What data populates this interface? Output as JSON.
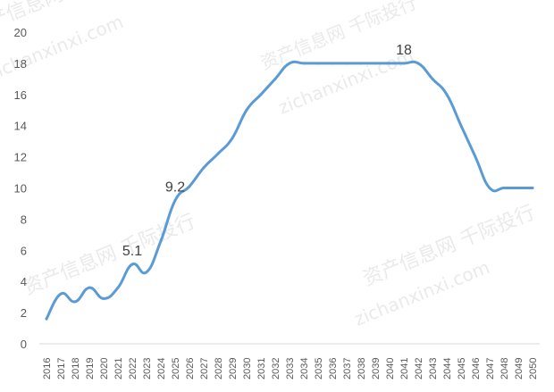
{
  "chart_data": {
    "type": "line",
    "title": "",
    "xlabel": "",
    "ylabel": "",
    "ylim": [
      0,
      20
    ],
    "yticks": [
      "0",
      "2",
      "4",
      "6",
      "8",
      "10",
      "12",
      "14",
      "16",
      "18",
      "20"
    ],
    "grid": false,
    "legend": "none",
    "x": [
      "2016",
      "2017",
      "2018",
      "2019",
      "2020",
      "2021",
      "2022",
      "2023",
      "2024",
      "2025",
      "2026",
      "2027",
      "2028",
      "2029",
      "2030",
      "2031",
      "2032",
      "2033",
      "2034",
      "2035",
      "2036",
      "2037",
      "2038",
      "2039",
      "2040",
      "2041",
      "2042",
      "2043",
      "2044",
      "2045",
      "2046",
      "2047",
      "2048",
      "2049",
      "2050"
    ],
    "series": [
      {
        "color": "#5b9bd5",
        "values": [
          1.6,
          3.2,
          2.7,
          3.6,
          2.9,
          3.6,
          5.1,
          4.6,
          6.6,
          9.2,
          10.1,
          11.3,
          12.2,
          13.2,
          15.0,
          16.0,
          17.0,
          18.0,
          18.0,
          18.0,
          18.0,
          18.0,
          18.0,
          18.0,
          18.0,
          18.0,
          18.0,
          17.0,
          16.0,
          14.0,
          12.0,
          10.0,
          10.0,
          10.0,
          10.0
        ]
      }
    ],
    "annotations": [
      {
        "x": "2022",
        "text": "5.1"
      },
      {
        "x": "2025",
        "text": "9.2"
      },
      {
        "x": "2041",
        "text": "18"
      }
    ]
  },
  "watermark": {
    "brand": "资产信息网 千际投行",
    "domain": "zichanxinxi.com"
  }
}
